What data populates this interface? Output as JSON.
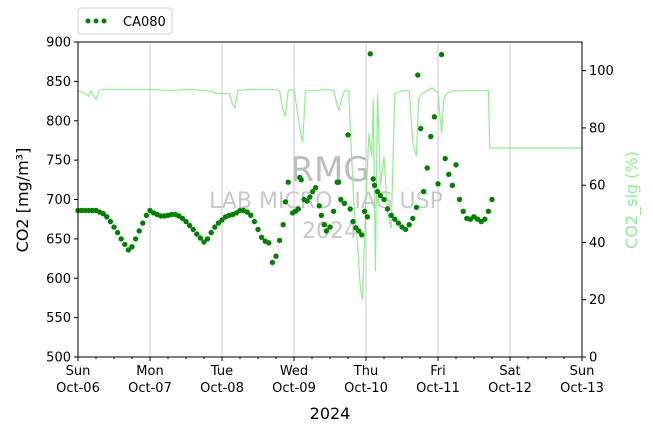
{
  "chart_data": {
    "type": "line",
    "title": "",
    "xlabel": "2024",
    "ylabel_left": "CO2 [mg/m³]",
    "ylabel_right": "CO2_sig (%)",
    "ylim_left": [
      500,
      900
    ],
    "ylim_right": [
      0,
      110
    ],
    "yticks_left": [
      "500",
      "550",
      "600",
      "650",
      "700",
      "750",
      "800",
      "850",
      "900"
    ],
    "yticks_right": [
      "0",
      "20",
      "40",
      "60",
      "80",
      "100"
    ],
    "xlim": [
      0,
      7
    ],
    "xticks": [
      {
        "day": "Sun",
        "date": "Oct-06"
      },
      {
        "day": "Mon",
        "date": "Oct-07"
      },
      {
        "day": "Tue",
        "date": "Oct-08"
      },
      {
        "day": "Wed",
        "date": "Oct-09"
      },
      {
        "day": "Thu",
        "date": "Oct-10"
      },
      {
        "day": "Fri",
        "date": "Oct-11"
      },
      {
        "day": "Sat",
        "date": "Oct-12"
      },
      {
        "day": "Sun",
        "date": "Oct-13"
      }
    ],
    "x_unit": "days since Oct-06 00:00",
    "grid": "vertical at day boundaries",
    "legend": {
      "placement": "top-left",
      "label": "CA080"
    },
    "watermark": [
      "RMG",
      "LAB MICRO - IAG USP",
      "2024"
    ],
    "colors": {
      "co2": "#008000",
      "sig": "#90ee90"
    },
    "series": [
      {
        "name": "CA080",
        "axis": "left",
        "style": "dots",
        "points": [
          [
            0.0,
            686
          ],
          [
            0.05,
            686
          ],
          [
            0.1,
            686
          ],
          [
            0.15,
            686
          ],
          [
            0.2,
            686
          ],
          [
            0.25,
            686
          ],
          [
            0.3,
            684
          ],
          [
            0.35,
            682
          ],
          [
            0.4,
            678
          ],
          [
            0.45,
            672
          ],
          [
            0.5,
            665
          ],
          [
            0.55,
            658
          ],
          [
            0.6,
            650
          ],
          [
            0.65,
            643
          ],
          [
            0.7,
            636
          ],
          [
            0.75,
            640
          ],
          [
            0.8,
            650
          ],
          [
            0.85,
            660
          ],
          [
            0.9,
            670
          ],
          [
            0.95,
            680
          ],
          [
            1.0,
            686
          ],
          [
            1.05,
            683
          ],
          [
            1.1,
            681
          ],
          [
            1.15,
            679
          ],
          [
            1.2,
            679
          ],
          [
            1.25,
            680
          ],
          [
            1.3,
            681
          ],
          [
            1.35,
            681
          ],
          [
            1.4,
            679
          ],
          [
            1.45,
            676
          ],
          [
            1.5,
            672
          ],
          [
            1.55,
            667
          ],
          [
            1.6,
            662
          ],
          [
            1.65,
            656
          ],
          [
            1.7,
            651
          ],
          [
            1.75,
            646
          ],
          [
            1.8,
            650
          ],
          [
            1.85,
            658
          ],
          [
            1.9,
            665
          ],
          [
            1.95,
            670
          ],
          [
            2.0,
            674
          ],
          [
            2.05,
            678
          ],
          [
            2.1,
            680
          ],
          [
            2.15,
            681
          ],
          [
            2.2,
            683
          ],
          [
            2.25,
            686
          ],
          [
            2.3,
            686
          ],
          [
            2.35,
            684
          ],
          [
            2.4,
            680
          ],
          [
            2.45,
            672
          ],
          [
            2.5,
            662
          ],
          [
            2.55,
            652
          ],
          [
            2.6,
            647
          ],
          [
            2.65,
            645
          ],
          [
            2.7,
            620
          ],
          [
            2.75,
            628
          ],
          [
            2.8,
            648
          ],
          [
            2.85,
            668
          ],
          [
            2.88,
            697
          ],
          [
            2.92,
            722
          ],
          [
            2.98,
            683
          ],
          [
            3.02,
            685
          ],
          [
            3.06,
            688
          ],
          [
            3.08,
            728
          ],
          [
            3.1,
            725
          ],
          [
            3.14,
            700
          ],
          [
            3.18,
            698
          ],
          [
            3.22,
            703
          ],
          [
            3.26,
            710
          ],
          [
            3.3,
            715
          ],
          [
            3.35,
            692
          ],
          [
            3.38,
            680
          ],
          [
            3.42,
            668
          ],
          [
            3.45,
            660
          ],
          [
            3.5,
            665
          ],
          [
            3.55,
            685
          ],
          [
            3.6,
            722
          ],
          [
            3.62,
            722
          ],
          [
            3.65,
            700
          ],
          [
            3.7,
            695
          ],
          [
            3.75,
            782
          ],
          [
            3.78,
            688
          ],
          [
            3.82,
            672
          ],
          [
            3.86,
            664
          ],
          [
            3.9,
            660
          ],
          [
            3.94,
            655
          ],
          [
            3.98,
            685
          ],
          [
            4.02,
            678
          ],
          [
            4.06,
            885
          ],
          [
            4.1,
            726
          ],
          [
            4.12,
            718
          ],
          [
            4.16,
            710
          ],
          [
            4.2,
            705
          ],
          [
            4.25,
            700
          ],
          [
            4.3,
            688
          ],
          [
            4.35,
            680
          ],
          [
            4.4,
            675
          ],
          [
            4.45,
            670
          ],
          [
            4.5,
            665
          ],
          [
            4.55,
            662
          ],
          [
            4.6,
            668
          ],
          [
            4.65,
            676
          ],
          [
            4.7,
            690
          ],
          [
            4.72,
            858
          ],
          [
            4.76,
            790
          ],
          [
            4.8,
            710
          ],
          [
            4.85,
            740
          ],
          [
            4.9,
            780
          ],
          [
            4.95,
            805
          ],
          [
            5.0,
            720
          ],
          [
            5.05,
            884
          ],
          [
            5.1,
            752
          ],
          [
            5.15,
            732
          ],
          [
            5.2,
            718
          ],
          [
            5.25,
            744
          ],
          [
            5.3,
            700
          ],
          [
            5.35,
            685
          ],
          [
            5.4,
            676
          ],
          [
            5.45,
            675
          ],
          [
            5.5,
            678
          ],
          [
            5.55,
            675
          ],
          [
            5.6,
            672
          ],
          [
            5.65,
            675
          ],
          [
            5.7,
            685
          ],
          [
            5.75,
            700
          ]
        ]
      },
      {
        "name": "CO2_sig",
        "axis": "right",
        "style": "line",
        "points": [
          [
            0.0,
            93
          ],
          [
            0.1,
            92
          ],
          [
            0.15,
            91
          ],
          [
            0.18,
            93
          ],
          [
            0.2,
            92
          ],
          [
            0.25,
            90
          ],
          [
            0.3,
            93
          ],
          [
            0.35,
            93.5
          ],
          [
            0.7,
            93.5
          ],
          [
            1.0,
            93.5
          ],
          [
            1.3,
            93
          ],
          [
            1.55,
            93.5
          ],
          [
            1.8,
            93
          ],
          [
            1.95,
            92
          ],
          [
            2.1,
            92
          ],
          [
            2.15,
            88
          ],
          [
            2.18,
            87
          ],
          [
            2.22,
            93
          ],
          [
            2.4,
            93.5
          ],
          [
            2.7,
            93.5
          ],
          [
            2.8,
            93
          ],
          [
            2.84,
            87
          ],
          [
            2.88,
            84
          ],
          [
            2.92,
            93
          ],
          [
            3.0,
            93.5
          ],
          [
            3.08,
            80
          ],
          [
            3.12,
            75
          ],
          [
            3.16,
            93
          ],
          [
            3.3,
            93
          ],
          [
            3.45,
            93.5
          ],
          [
            3.55,
            93
          ],
          [
            3.62,
            86
          ],
          [
            3.66,
            90
          ],
          [
            3.7,
            93
          ],
          [
            3.76,
            93
          ],
          [
            3.8,
            70
          ],
          [
            3.84,
            50
          ],
          [
            3.88,
            40
          ],
          [
            3.92,
            25
          ],
          [
            3.95,
            20
          ],
          [
            4.0,
            55
          ],
          [
            4.04,
            78
          ],
          [
            4.08,
            70
          ],
          [
            4.1,
            90
          ],
          [
            4.13,
            30
          ],
          [
            4.16,
            92
          ],
          [
            4.2,
            60
          ],
          [
            4.25,
            70
          ],
          [
            4.3,
            50
          ],
          [
            4.35,
            45
          ],
          [
            4.4,
            92
          ],
          [
            4.5,
            93
          ],
          [
            4.6,
            93
          ],
          [
            4.65,
            75
          ],
          [
            4.7,
            70
          ],
          [
            4.73,
            90
          ],
          [
            4.78,
            92
          ],
          [
            4.85,
            93
          ],
          [
            4.92,
            94
          ],
          [
            5.0,
            92
          ],
          [
            5.05,
            78
          ],
          [
            5.08,
            90
          ],
          [
            5.12,
            92
          ],
          [
            5.2,
            93
          ],
          [
            5.4,
            93
          ],
          [
            5.6,
            93
          ],
          [
            5.7,
            93
          ],
          [
            5.72,
            73
          ],
          [
            6.0,
            73
          ],
          [
            6.5,
            73
          ],
          [
            7.0,
            73
          ]
        ]
      }
    ]
  }
}
